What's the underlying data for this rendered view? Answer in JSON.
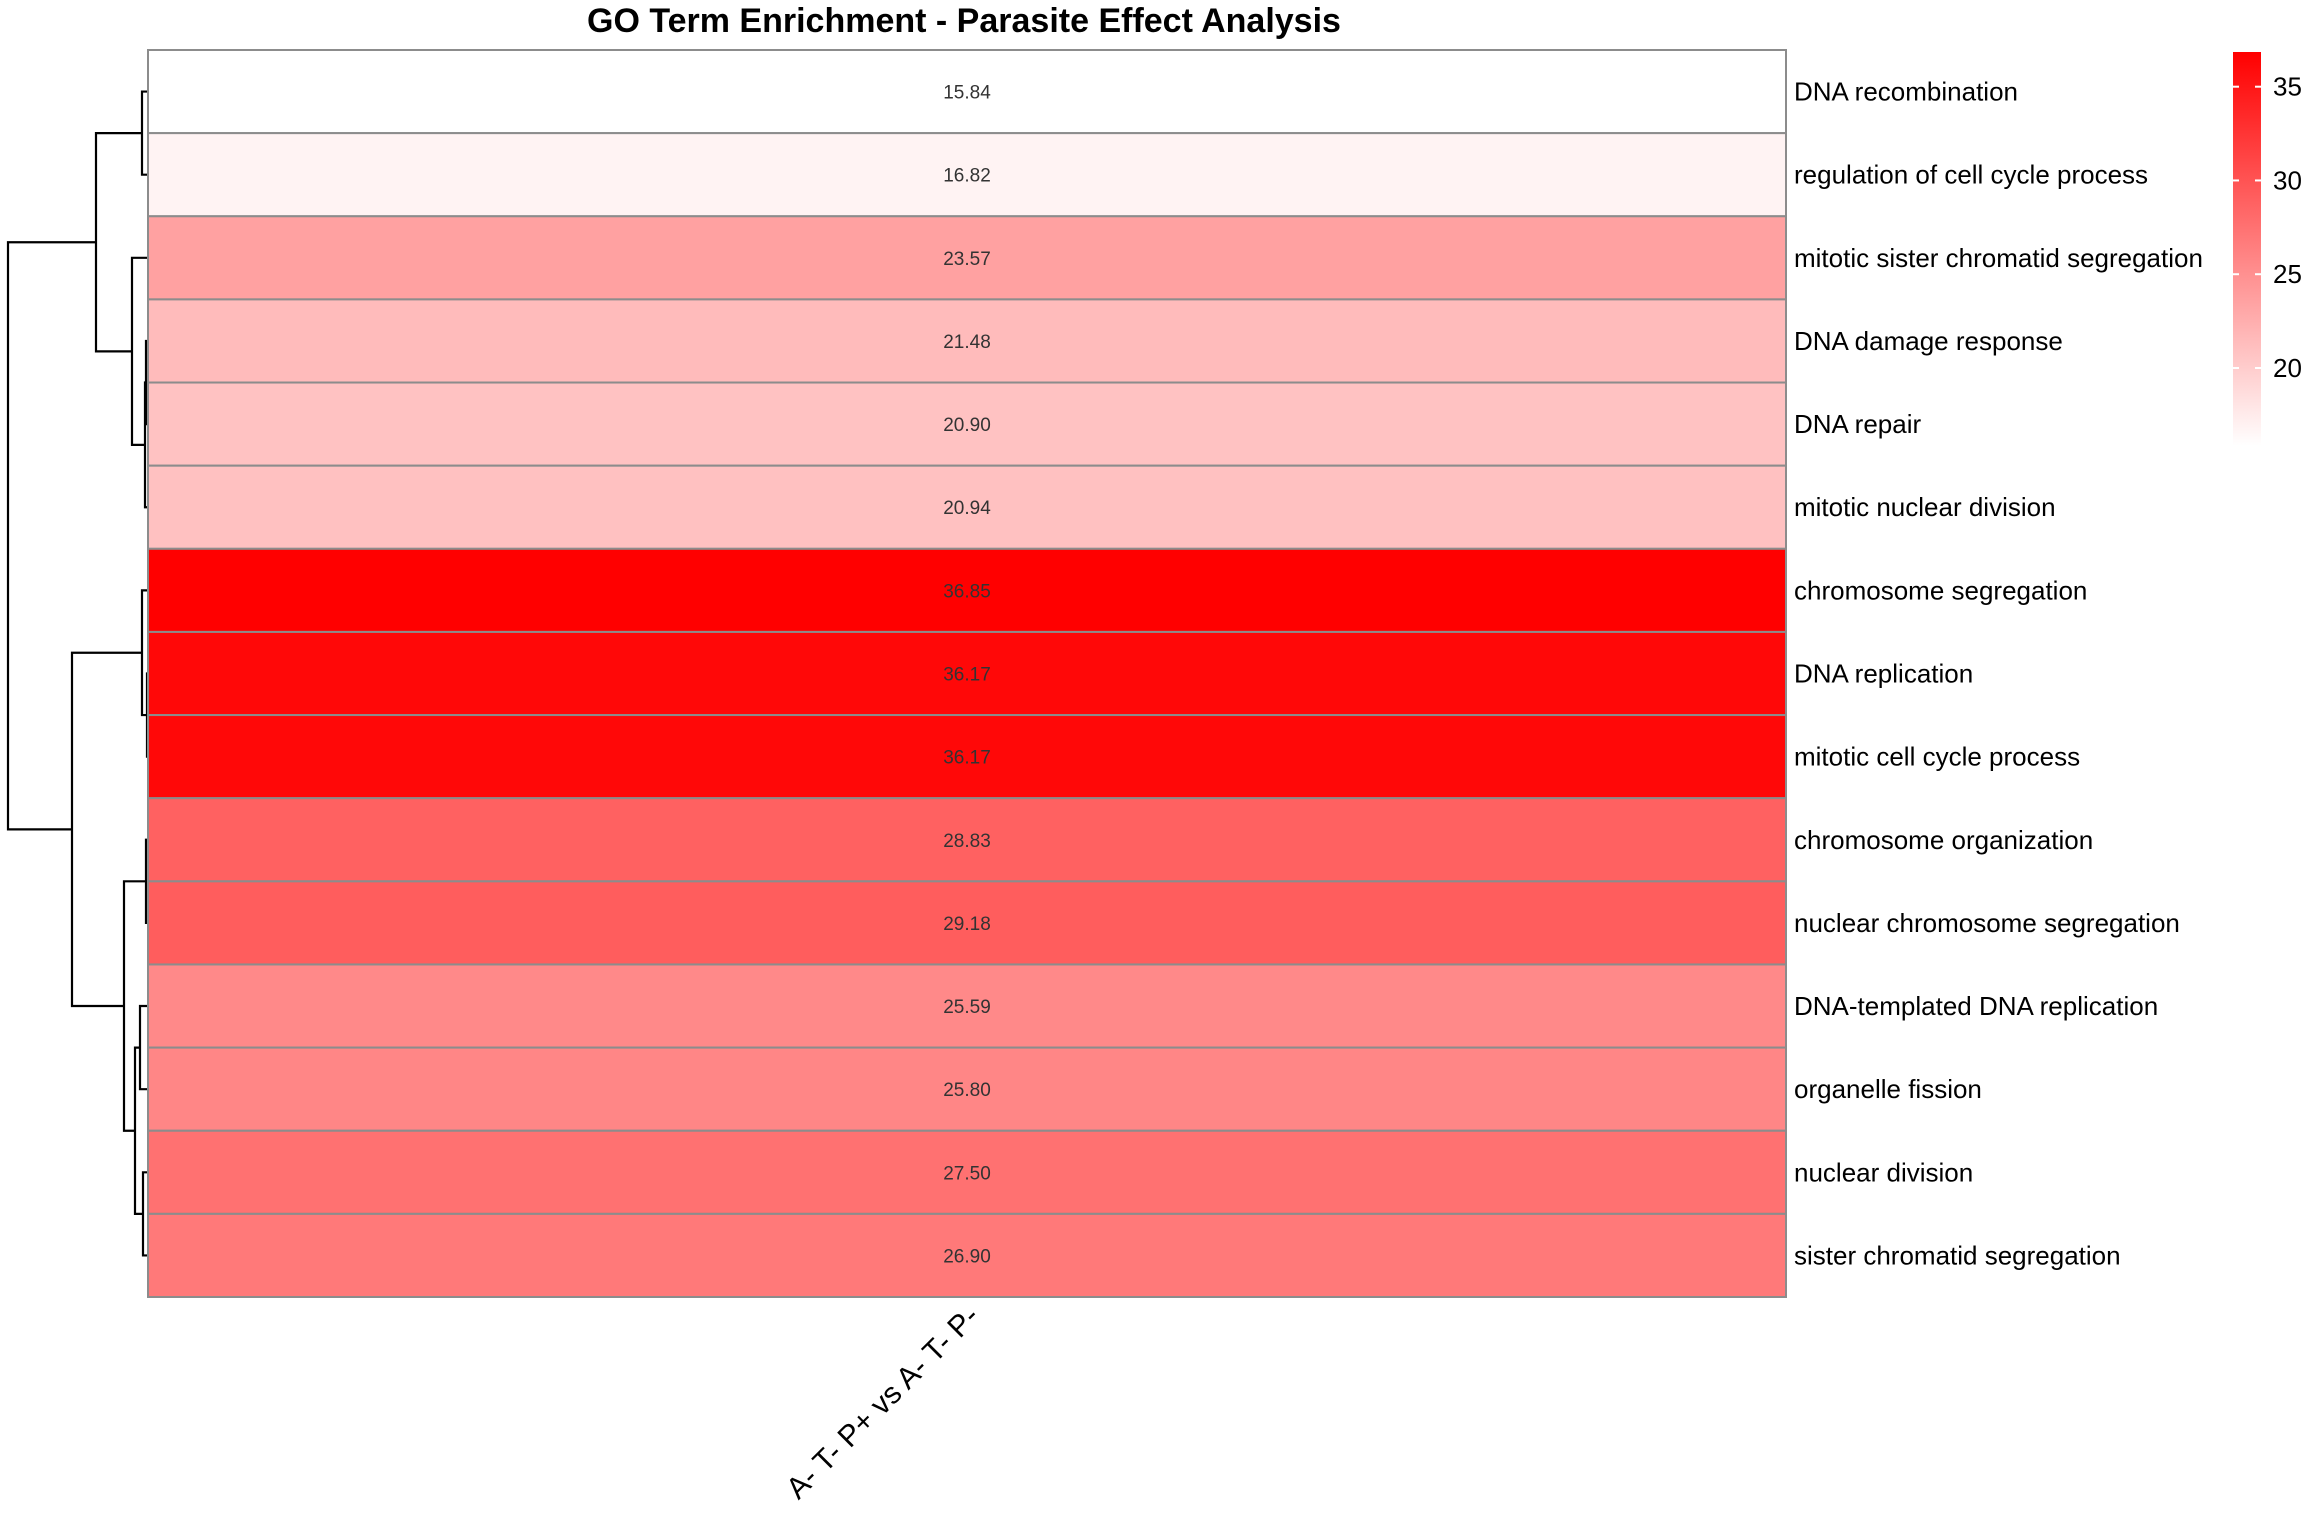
{
  "chart_data": {
    "type": "heatmap",
    "title": "GO Term Enrichment - Parasite Effect Analysis",
    "columns": [
      "A- T- P+ vs A- T- P-"
    ],
    "rows": [
      {
        "term": "DNA recombination",
        "value": 15.84,
        "label": "15.84"
      },
      {
        "term": "regulation of cell cycle process",
        "value": 16.82,
        "label": "16.82"
      },
      {
        "term": "mitotic sister chromatid segregation",
        "value": 23.57,
        "label": "23.57"
      },
      {
        "term": "DNA damage response",
        "value": 21.48,
        "label": "21.48"
      },
      {
        "term": "DNA repair",
        "value": 20.9,
        "label": "20.90"
      },
      {
        "term": "mitotic nuclear division",
        "value": 20.94,
        "label": "20.94"
      },
      {
        "term": "chromosome segregation",
        "value": 36.85,
        "label": "36.85"
      },
      {
        "term": "DNA replication",
        "value": 36.17,
        "label": "36.17"
      },
      {
        "term": "mitotic cell cycle process",
        "value": 36.17,
        "label": "36.17"
      },
      {
        "term": "chromosome organization",
        "value": 28.83,
        "label": "28.83"
      },
      {
        "term": "nuclear chromosome segregation",
        "value": 29.18,
        "label": "29.18"
      },
      {
        "term": "DNA-templated DNA replication",
        "value": 25.59,
        "label": "25.59"
      },
      {
        "term": "organelle fission",
        "value": 25.8,
        "label": "25.80"
      },
      {
        "term": "nuclear division",
        "value": 27.5,
        "label": "27.50"
      },
      {
        "term": "sister chromatid segregation",
        "value": 26.9,
        "label": "26.90"
      }
    ],
    "color_scale": {
      "low": "#ffffff",
      "high": "#ff0000",
      "min": 15.84,
      "max": 36.85
    },
    "legend_ticks": [
      20,
      25,
      30,
      35
    ],
    "row_dendrogram": true,
    "grid": false
  }
}
